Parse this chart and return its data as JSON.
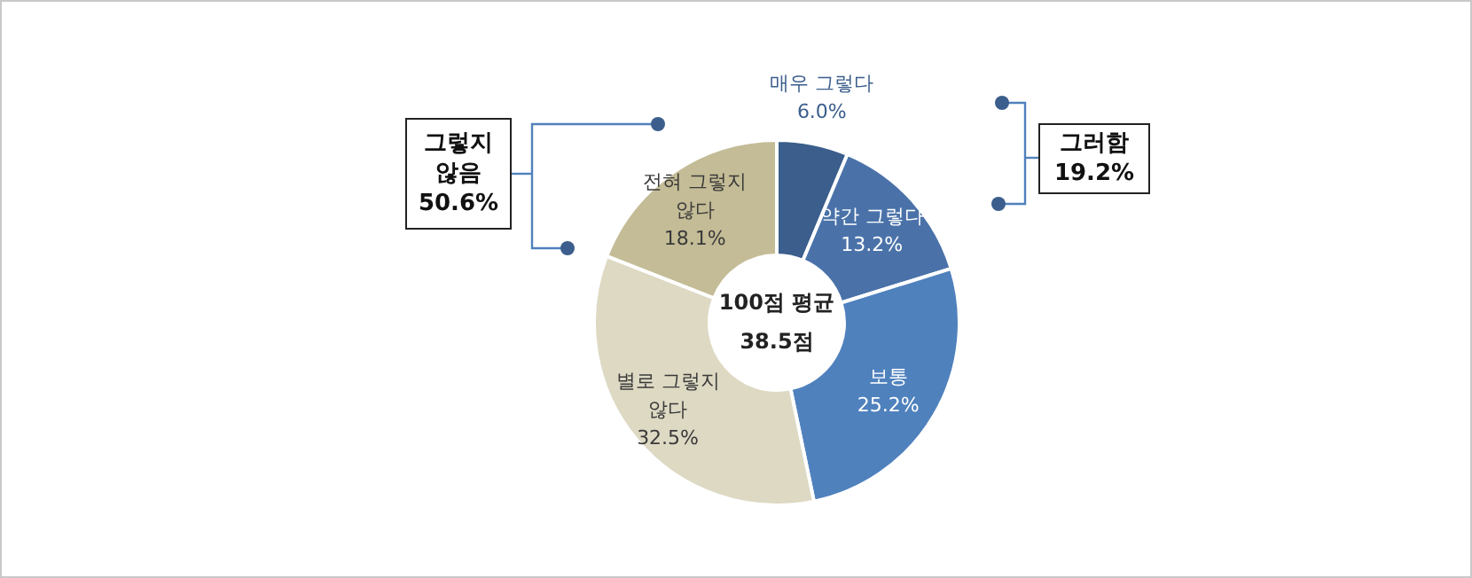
{
  "chart_data": {
    "type": "donut",
    "categories": [
      "매우 그렇다",
      "약간 그렇다",
      "보통",
      "별로 그렇지 않다",
      "전혀 그렇지 않다"
    ],
    "values": [
      6.0,
      13.2,
      25.2,
      32.5,
      18.1
    ],
    "value_labels": [
      "6.0%",
      "13.2%",
      "25.2%",
      "32.5%",
      "18.1%"
    ],
    "colors": [
      "#3b5e8c",
      "#4a72a9",
      "#4f81bd",
      "#ddd9c3",
      "#c4bc96"
    ],
    "annotations": [
      "100점 평균\n38.5점",
      "그렇지\n않음\n50.6%",
      "그러함\n19.2%"
    ]
  }
}
